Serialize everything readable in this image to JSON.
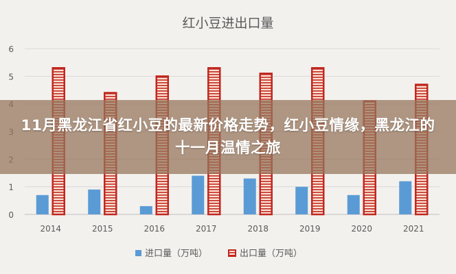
{
  "banner": {
    "headline": "11月黑龙江省红小豆的最新价格走势，红小豆情缘，黑龙江的十一月温情之旅"
  },
  "colors": {
    "import": "#5b9bd5",
    "export_fill": "#fbe3d4",
    "export_stroke": "#c0271f",
    "grid": "#d9d9d9",
    "axis_text": "#595959",
    "title_text": "#595959"
  },
  "chart_data": {
    "type": "bar",
    "title": "红小豆进出口量",
    "xlabel": "",
    "ylabel": "",
    "categories": [
      "2014",
      "2015",
      "2016",
      "2017",
      "2018",
      "2019",
      "2020",
      "2021"
    ],
    "ylim": [
      0,
      6
    ],
    "yticks": [
      "0",
      "1",
      "2",
      "3",
      "4",
      "5",
      "6"
    ],
    "grid": true,
    "legend": "bottom",
    "series": [
      {
        "name": "进口量（万吨）",
        "values": [
          0.7,
          0.9,
          0.3,
          1.4,
          1.3,
          1.0,
          0.7,
          1.2
        ]
      },
      {
        "name": "出口量（万吨）",
        "values": [
          5.3,
          4.4,
          5.0,
          5.3,
          5.1,
          5.3,
          4.1,
          4.7
        ]
      }
    ]
  }
}
